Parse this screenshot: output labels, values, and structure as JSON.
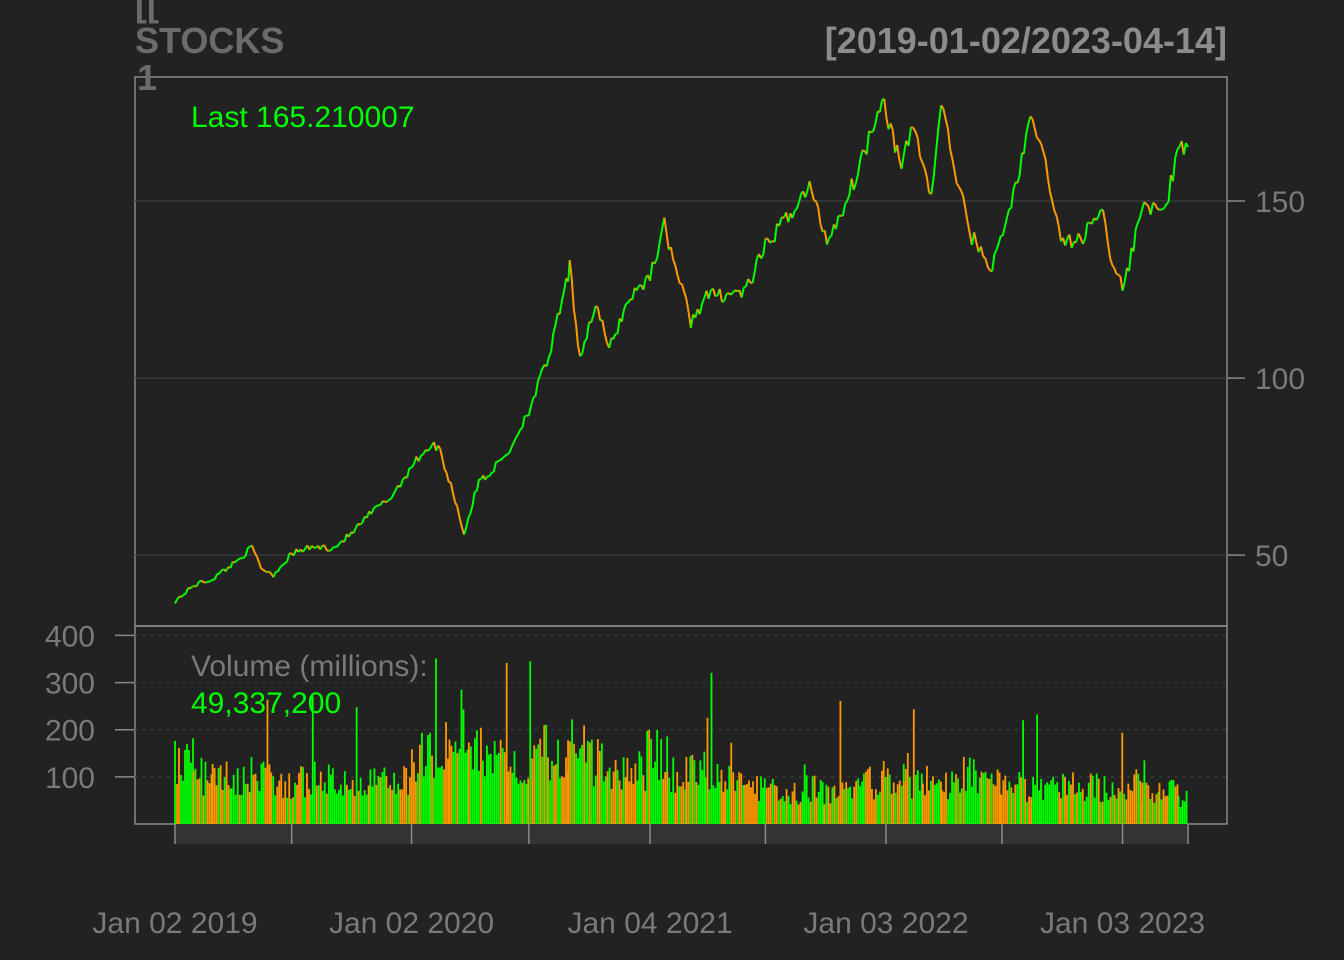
{
  "colors": {
    "background": "#222222",
    "up": "#00ff00",
    "down": "#ff9900",
    "frame": "#8a8a8a",
    "grid": "#3a3a3a",
    "text": "#7a7a7a",
    "title": "#6b6b6b",
    "last_label": "#00ff00"
  },
  "chart_data": {
    "type": "line",
    "title_lines": [
      "[[",
      "STOCKS",
      "1"
    ],
    "date_range": "[2019-01-02/2023-04-14]",
    "last_label": "Last 165.210007",
    "volume_label": "Volume (millions):",
    "volume_last": "49,337,200",
    "x_tick_labels": [
      "Jan 02 2019",
      "Jan 02 2020",
      "Jan 04 2021",
      "Jan 03 2022",
      "Jan 03 2023"
    ],
    "x_range": [
      "2019-01-02",
      "2023-04-14"
    ],
    "price_yticks": [
      50,
      100,
      150
    ],
    "price_ylim": [
      30,
      185
    ],
    "volume_yticks": [
      100,
      200,
      300,
      400
    ],
    "volume_ylim": [
      0,
      420
    ],
    "grid": true,
    "series": [
      {
        "x": [
          "2019-01-02",
          "2019-02-01",
          "2019-03-01",
          "2019-04-01",
          "2019-05-01",
          "2019-05-15",
          "2019-06-03",
          "2019-07-01",
          "2019-08-01",
          "2019-09-03",
          "2019-10-01",
          "2019-11-01",
          "2019-12-02",
          "2020-01-02",
          "2020-01-24",
          "2020-02-12",
          "2020-03-09",
          "2020-03-23",
          "2020-04-15",
          "2020-05-01",
          "2020-06-01",
          "2020-07-01",
          "2020-08-01",
          "2020-08-31",
          "2020-09-02",
          "2020-09-18",
          "2020-10-12",
          "2020-11-02",
          "2020-12-01",
          "2021-01-04",
          "2021-01-26",
          "2021-03-08",
          "2021-04-01",
          "2021-05-12",
          "2021-06-01",
          "2021-07-01",
          "2021-08-02",
          "2021-09-07",
          "2021-10-04",
          "2021-11-01",
          "2021-12-01",
          "2021-12-28",
          "2022-01-27",
          "2022-02-14",
          "2022-03-14",
          "2022-03-29",
          "2022-04-12",
          "2022-05-12",
          "2022-06-16",
          "2022-07-12",
          "2022-08-17",
          "2022-09-13",
          "2022-09-30",
          "2022-10-13",
          "2022-11-03",
          "2022-11-30",
          "2022-12-15",
          "2023-01-03",
          "2023-01-20",
          "2023-02-02",
          "2023-03-01",
          "2023-03-15",
          "2023-04-01",
          "2023-04-14"
        ],
        "y": [
          37.0,
          41.6,
          43.3,
          47.5,
          52.2,
          46.4,
          44.5,
          50.4,
          52.3,
          52.0,
          56.0,
          62.0,
          66.5,
          75.0,
          80.0,
          81.0,
          66.0,
          56.0,
          71.0,
          73.0,
          79.5,
          91.0,
          106.0,
          129.0,
          131.0,
          106.0,
          121.0,
          108.0,
          122.0,
          129.0,
          143.0,
          116.0,
          123.0,
          124.0,
          124.5,
          137.0,
          145.0,
          154.0,
          139.0,
          149.0,
          164.0,
          180.0,
          159.0,
          172.0,
          151.0,
          178.0,
          165.0,
          141.0,
          131.0,
          147.0,
          174.0,
          155.0,
          138.0,
          139.0,
          139.0,
          149.0,
          136.0,
          125.0,
          137.0,
          150.0,
          146.0,
          152.0,
          165.0,
          165.21
        ]
      }
    ],
    "volume_series": {
      "x": [
        "2019-01",
        "2019-02",
        "2019-03",
        "2019-04",
        "2019-05",
        "2019-06",
        "2019-07",
        "2019-08",
        "2019-09",
        "2019-10",
        "2019-11",
        "2019-12",
        "2020-01",
        "2020-02",
        "2020-03",
        "2020-04",
        "2020-05",
        "2020-06",
        "2020-07",
        "2020-08",
        "2020-09",
        "2020-10",
        "2020-11",
        "2020-12",
        "2021-01",
        "2021-02",
        "2021-03",
        "2021-04",
        "2021-05",
        "2021-06",
        "2021-07",
        "2021-08",
        "2021-09",
        "2021-10",
        "2021-11",
        "2021-12",
        "2022-01",
        "2022-02",
        "2022-03",
        "2022-04",
        "2022-05",
        "2022-06",
        "2022-07",
        "2022-08",
        "2022-09",
        "2022-10",
        "2022-11",
        "2022-12",
        "2023-01",
        "2023-02",
        "2023-03",
        "2023-04"
      ],
      "y": [
        140,
        110,
        115,
        100,
        120,
        90,
        95,
        110,
        95,
        90,
        95,
        105,
        150,
        175,
        270,
        180,
        140,
        120,
        170,
        160,
        200,
        140,
        130,
        120,
        160,
        110,
        120,
        100,
        95,
        80,
        80,
        70,
        80,
        70,
        75,
        95,
        105,
        95,
        100,
        90,
        110,
        90,
        80,
        80,
        85,
        90,
        85,
        80,
        90,
        70,
        80,
        60
      ]
    }
  }
}
